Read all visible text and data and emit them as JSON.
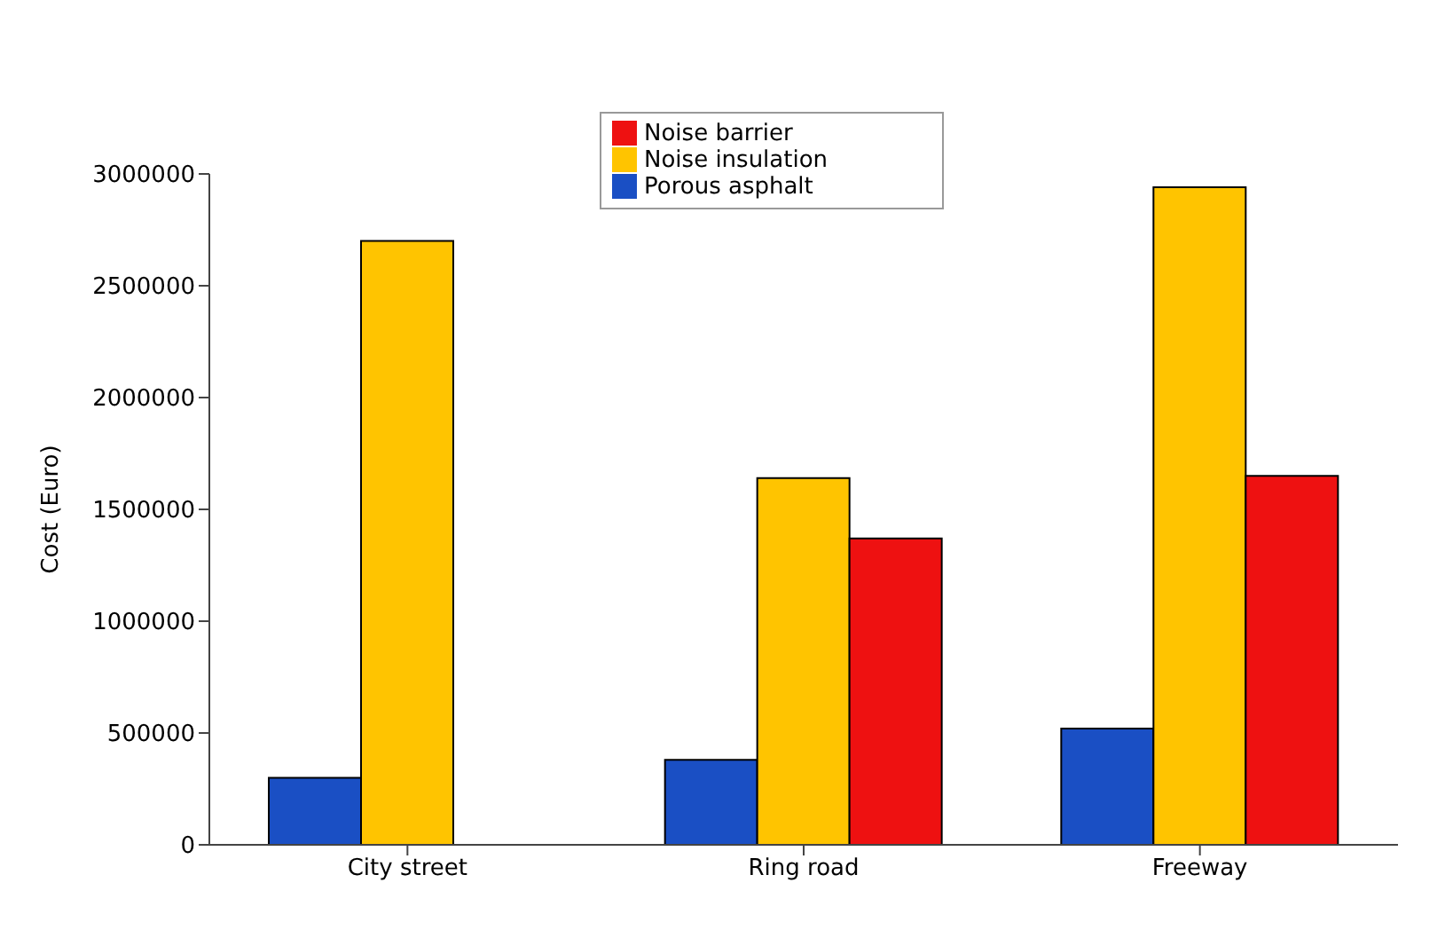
{
  "chart_data": {
    "type": "bar",
    "ylabel": "Cost (Euro)",
    "categories": [
      "City street",
      "Ring road",
      "Freeway"
    ],
    "series": [
      {
        "name": "Porous asphalt",
        "color": "#1a4fc4",
        "values": [
          300000,
          380000,
          520000
        ]
      },
      {
        "name": "Noise insulation",
        "color": "#ffc400",
        "values": [
          2700000,
          1640000,
          2940000
        ]
      },
      {
        "name": "Noise barrier",
        "color": "#ee1111",
        "values": [
          null,
          1370000,
          1650000
        ]
      }
    ],
    "ylim": [
      0,
      3000000
    ],
    "yticks": [
      0,
      500000,
      1000000,
      1500000,
      2000000,
      2500000,
      3000000
    ],
    "grid": false,
    "legend": "top"
  }
}
